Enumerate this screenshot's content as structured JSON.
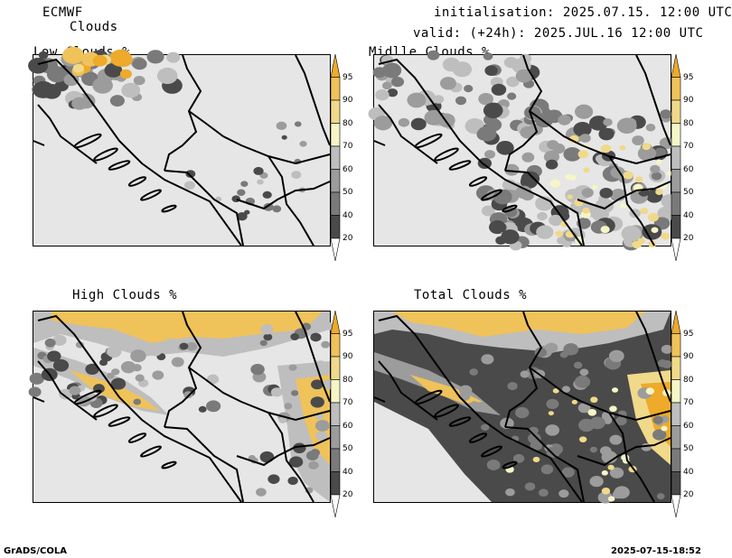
{
  "header": {
    "model": "ECMWF",
    "product": "Clouds",
    "initialisation": "initialisation: 2025.07.15. 12:00 UTC",
    "valid": "valid: (+24h): 2025.JUL.16 12:00 UTC"
  },
  "panels": [
    {
      "id": "low",
      "title": "Low Clouds %"
    },
    {
      "id": "middle",
      "title": "Midlle Clouds %"
    },
    {
      "id": "high",
      "title": "High Clouds %"
    },
    {
      "id": "total",
      "title": "Total Clouds %"
    }
  ],
  "colorbar": {
    "labels": [
      "95",
      "90",
      "80",
      "70",
      "60",
      "50",
      "40",
      "20"
    ],
    "colors": {
      "c20": "#4a4a4a",
      "c40": "#7a7a7a",
      "c50": "#9c9c9c",
      "c60": "#bebebe",
      "c70": "#f5f5c8",
      "c80": "#f1d98a",
      "c90": "#efc25a",
      "c95": "#eeaa2a",
      "background": "#e6e6e6"
    }
  },
  "footer": {
    "left": "GrADS/COLA",
    "right": "2025-07-15-18:52"
  }
}
